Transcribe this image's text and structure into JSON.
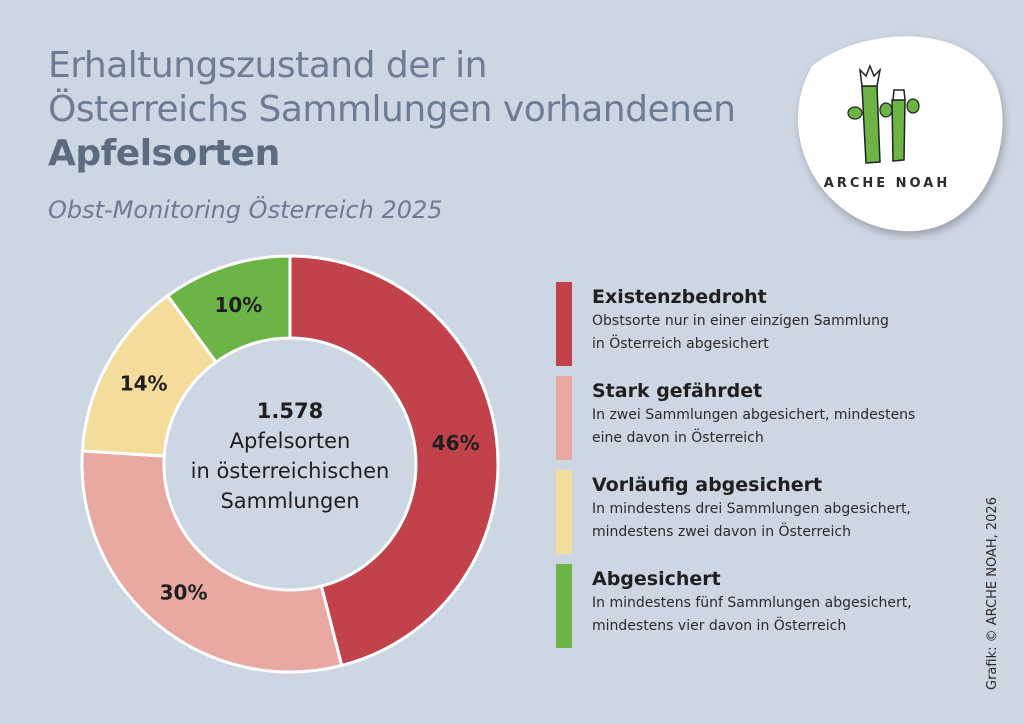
{
  "header": {
    "title_line1": "Erhaltungszustand der in",
    "title_line2": "Österreichs Sammlungen vorhandenen",
    "title_bold": "Apfelsorten",
    "subtitle": "Obst-Monitoring Österreich 2025"
  },
  "logo": {
    "text": "ARCHE NOAH"
  },
  "center": {
    "number": "1.578",
    "line1": "Apfelsorten",
    "line2": "in österreichischen",
    "line3": "Sammlungen"
  },
  "credit": "Grafik: © ARCHE NOAH, 2026",
  "chart_data": {
    "type": "pie",
    "variant": "donut",
    "title": "Erhaltungszustand der in Österreichs Sammlungen vorhandenen Apfelsorten",
    "total": 1578,
    "categories": [
      "Existenzbedroht",
      "Stark gefährdet",
      "Vorläufig abgesichert",
      "Abgesichert"
    ],
    "values": [
      46,
      30,
      14,
      10
    ],
    "labels": [
      "46%",
      "30%",
      "14%",
      "10%"
    ],
    "colors": [
      "#c1424b",
      "#e8a9a3",
      "#f4dc9b",
      "#6db446"
    ],
    "descriptions": [
      [
        "Obstsorte nur in einer einzigen Sammlung",
        "in Österreich abgesichert"
      ],
      [
        "In zwei Sammlungen abgesichert, mindestens",
        "eine davon in Österreich"
      ],
      [
        "In mindestens drei Sammlungen abgesichert,",
        "mindestens zwei davon in Österreich"
      ],
      [
        "In mindestens fünf Sammlungen abgesichert,",
        "mindestens vier davon in Österreich"
      ]
    ],
    "legend_position": "right"
  }
}
